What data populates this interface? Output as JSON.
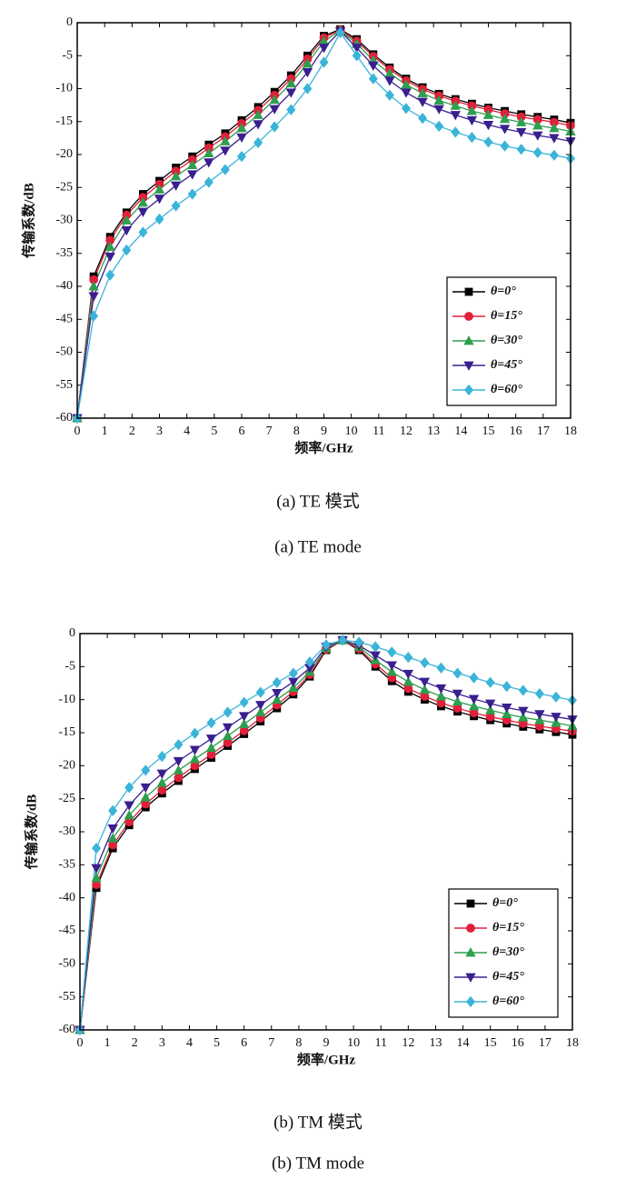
{
  "chart_data": [
    {
      "type": "line",
      "ylabel": "传输系数/dB",
      "xlabel": "频率/GHz",
      "caption": "(a) TE 模式",
      "caption_en": "(a) TE mode",
      "xlim": [
        0,
        18
      ],
      "xticks": [
        0,
        1,
        2,
        3,
        4,
        5,
        6,
        7,
        8,
        9,
        10,
        11,
        12,
        13,
        14,
        15,
        16,
        17,
        18
      ],
      "ylim": [
        -60,
        0
      ],
      "yticks": [
        0,
        -5,
        -10,
        -15,
        -20,
        -25,
        -30,
        -35,
        -40,
        -45,
        -50,
        -55,
        -60
      ],
      "grid": false,
      "legend": "lower right",
      "x": [
        0,
        0.6,
        1.2,
        1.8,
        2.4,
        3,
        3.6,
        4.2,
        4.8,
        5.4,
        6,
        6.6,
        7.2,
        7.8,
        8.4,
        9,
        9.6,
        10.2,
        10.8,
        11.4,
        12,
        12.6,
        13.2,
        13.8,
        14.4,
        15,
        15.6,
        16.2,
        16.8,
        17.4,
        18
      ],
      "series": [
        {
          "name": "θ=0°",
          "color": "#000000",
          "marker": "square",
          "values": [
            -60,
            -38.5,
            -32.5,
            -28.8,
            -26,
            -24,
            -22,
            -20.3,
            -18.5,
            -16.8,
            -14.8,
            -12.8,
            -10.5,
            -8,
            -5,
            -2,
            -1,
            -2.5,
            -4.8,
            -6.8,
            -8.5,
            -9.8,
            -10.8,
            -11.6,
            -12.3,
            -12.9,
            -13.4,
            -13.9,
            -14.3,
            -14.7,
            -15.2
          ]
        },
        {
          "name": "θ=15°",
          "color": "#e0203a",
          "marker": "circle",
          "values": [
            -60,
            -39,
            -33,
            -29.2,
            -26.5,
            -24.5,
            -22.5,
            -20.8,
            -19,
            -17.3,
            -15.3,
            -13.3,
            -11,
            -8.5,
            -5.5,
            -2.3,
            -1.1,
            -2.8,
            -5.1,
            -7.1,
            -8.8,
            -10.1,
            -11.1,
            -11.9,
            -12.6,
            -13.2,
            -13.8,
            -14.3,
            -14.7,
            -15.1,
            -15.6
          ]
        },
        {
          "name": "θ=30°",
          "color": "#2e9e4f",
          "marker": "triangle-up",
          "values": [
            -60,
            -40,
            -34,
            -30,
            -27.3,
            -25.3,
            -23.3,
            -21.6,
            -19.8,
            -18,
            -16,
            -14,
            -11.7,
            -9.2,
            -6.2,
            -2.8,
            -1.2,
            -3.2,
            -5.7,
            -7.7,
            -9.4,
            -10.7,
            -11.8,
            -12.6,
            -13.4,
            -14,
            -14.6,
            -15.1,
            -15.6,
            -16,
            -16.5
          ]
        },
        {
          "name": "θ=45°",
          "color": "#3a1f8f",
          "marker": "triangle-down",
          "values": [
            -60,
            -41.5,
            -35.5,
            -31.5,
            -28.7,
            -26.7,
            -24.7,
            -23,
            -21.2,
            -19.4,
            -17.4,
            -15.4,
            -13.1,
            -10.6,
            -7.5,
            -3.8,
            -1.3,
            -3.8,
            -6.5,
            -8.8,
            -10.6,
            -12,
            -13.1,
            -14,
            -14.8,
            -15.5,
            -16.1,
            -16.6,
            -17.1,
            -17.5,
            -18
          ]
        },
        {
          "name": "θ=60°",
          "color": "#3ab4d9",
          "marker": "diamond",
          "values": [
            -60,
            -44.5,
            -38.3,
            -34.5,
            -31.8,
            -29.8,
            -27.8,
            -26,
            -24.2,
            -22.3,
            -20.3,
            -18.2,
            -15.8,
            -13.2,
            -10,
            -6,
            -1.5,
            -5,
            -8.5,
            -11,
            -13,
            -14.5,
            -15.7,
            -16.6,
            -17.4,
            -18.1,
            -18.7,
            -19.2,
            -19.7,
            -20.1,
            -20.6
          ]
        }
      ]
    },
    {
      "type": "line",
      "ylabel": "传输系数/dB",
      "xlabel": "频率/GHz",
      "caption": "(b) TM 模式",
      "caption_en": "(b) TM mode",
      "xlim": [
        0,
        18
      ],
      "xticks": [
        0,
        1,
        2,
        3,
        4,
        5,
        6,
        7,
        8,
        9,
        10,
        11,
        12,
        13,
        14,
        15,
        16,
        17,
        18
      ],
      "ylim": [
        -60,
        0
      ],
      "yticks": [
        0,
        -5,
        -10,
        -15,
        -20,
        -25,
        -30,
        -35,
        -40,
        -45,
        -50,
        -55,
        -60
      ],
      "grid": false,
      "legend": "lower right",
      "x": [
        0,
        0.6,
        1.2,
        1.8,
        2.4,
        3,
        3.6,
        4.2,
        4.8,
        5.4,
        6,
        6.6,
        7.2,
        7.8,
        8.4,
        9,
        9.6,
        10.2,
        10.8,
        11.4,
        12,
        12.6,
        13.2,
        13.8,
        14.4,
        15,
        15.6,
        16.2,
        16.8,
        17.4,
        18
      ],
      "series": [
        {
          "name": "θ=0°",
          "color": "#000000",
          "marker": "square",
          "values": [
            -60,
            -38.5,
            -32.5,
            -29,
            -26.3,
            -24.2,
            -22.3,
            -20.5,
            -18.8,
            -17,
            -15.2,
            -13.3,
            -11.3,
            -9.2,
            -6.5,
            -2.5,
            -1,
            -2.5,
            -5,
            -7.2,
            -8.8,
            -10,
            -11,
            -11.8,
            -12.5,
            -13.1,
            -13.6,
            -14.1,
            -14.5,
            -14.9,
            -15.3
          ]
        },
        {
          "name": "θ=15°",
          "color": "#e0203a",
          "marker": "circle",
          "values": [
            -60,
            -38,
            -32,
            -28.5,
            -25.8,
            -23.7,
            -21.8,
            -20,
            -18.3,
            -16.5,
            -14.7,
            -12.8,
            -10.8,
            -8.8,
            -6.2,
            -2.4,
            -1,
            -2.3,
            -4.6,
            -6.7,
            -8.3,
            -9.5,
            -10.5,
            -11.3,
            -12,
            -12.6,
            -13.1,
            -13.6,
            -14,
            -14.4,
            -14.8
          ]
        },
        {
          "name": "θ=30°",
          "color": "#2e9e4f",
          "marker": "triangle-up",
          "values": [
            -60,
            -37,
            -31,
            -27.5,
            -24.8,
            -22.6,
            -20.7,
            -19,
            -17.3,
            -15.5,
            -13.7,
            -11.9,
            -10,
            -8.2,
            -5.8,
            -2.2,
            -1,
            -2,
            -4,
            -5.8,
            -7.3,
            -8.5,
            -9.5,
            -10.3,
            -11,
            -11.6,
            -12.2,
            -12.7,
            -13.1,
            -13.5,
            -14
          ]
        },
        {
          "name": "θ=45°",
          "color": "#3a1f8f",
          "marker": "triangle-down",
          "values": [
            -60,
            -35.5,
            -29.5,
            -26,
            -23.3,
            -21.2,
            -19.3,
            -17.6,
            -15.9,
            -14.2,
            -12.5,
            -10.8,
            -9,
            -7.3,
            -5.2,
            -2,
            -1,
            -1.8,
            -3.3,
            -4.8,
            -6.1,
            -7.3,
            -8.3,
            -9.1,
            -9.9,
            -10.6,
            -11.2,
            -11.7,
            -12.2,
            -12.6,
            -13
          ]
        },
        {
          "name": "θ=60°",
          "color": "#3ab4d9",
          "marker": "diamond",
          "values": [
            -60,
            -32.5,
            -26.8,
            -23.3,
            -20.7,
            -18.6,
            -16.8,
            -15.1,
            -13.5,
            -11.9,
            -10.4,
            -8.9,
            -7.4,
            -6,
            -4.3,
            -1.7,
            -1,
            -1.3,
            -2,
            -2.8,
            -3.6,
            -4.4,
            -5.2,
            -6,
            -6.7,
            -7.4,
            -8,
            -8.6,
            -9.1,
            -9.6,
            -10.1
          ]
        }
      ]
    }
  ]
}
